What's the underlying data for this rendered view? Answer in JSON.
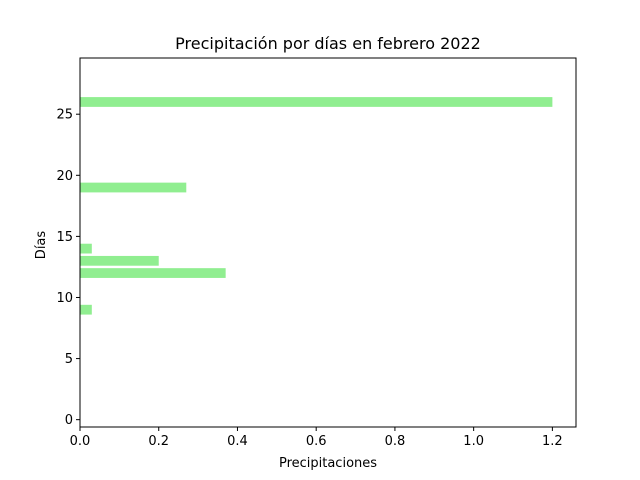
{
  "chart_data": {
    "type": "bar",
    "orientation": "horizontal",
    "title": "Precipitación por días en febrero 2022",
    "xlabel": "Precipitaciones",
    "ylabel": "Días",
    "xlim": [
      0,
      1.26
    ],
    "ylim": [
      -0.6,
      29.6
    ],
    "xticks": [
      0.0,
      0.2,
      0.4,
      0.6,
      0.8,
      1.0,
      1.2
    ],
    "xtick_labels": [
      "0.0",
      "0.2",
      "0.4",
      "0.6",
      "0.8",
      "1.0",
      "1.2"
    ],
    "yticks": [
      0,
      5,
      10,
      15,
      20,
      25
    ],
    "ytick_labels": [
      "0",
      "5",
      "10",
      "15",
      "20",
      "25"
    ],
    "grid": false,
    "bar_color": "#90ee90",
    "series": [
      {
        "days": [
          9,
          12,
          13,
          14,
          19,
          26
        ],
        "values": [
          0.03,
          0.37,
          0.2,
          0.03,
          0.27,
          1.2
        ]
      }
    ]
  }
}
